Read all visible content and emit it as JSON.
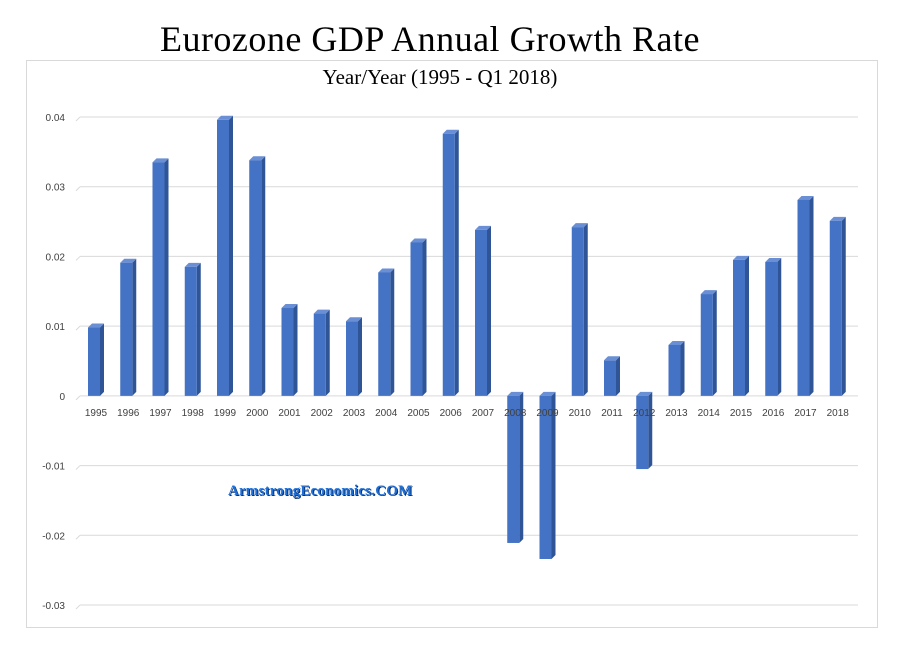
{
  "page": {
    "title": "Eurozone GDP Annual Growth Rate",
    "watermark": "ArmstrongEconomics.COM"
  },
  "colors": {
    "bar_front": "#4472c4",
    "bar_side": "#2f5597",
    "bar_top": "#6a8fd4",
    "gridline": "#d9d9d9",
    "axis_text": "#404040",
    "watermark": "#1f6fd6"
  },
  "chart_data": {
    "type": "bar",
    "title": "Year/Year (1995 - Q1 2018)",
    "xlabel": "",
    "ylabel": "",
    "categories": [
      "1995",
      "1996",
      "1997",
      "1998",
      "1999",
      "2000",
      "2001",
      "2002",
      "2003",
      "2004",
      "2005",
      "2006",
      "2007",
      "2008",
      "2009",
      "2010",
      "2011",
      "2012",
      "2013",
      "2014",
      "2015",
      "2016",
      "2017",
      "2018"
    ],
    "values": [
      0.0098,
      0.0191,
      0.0335,
      0.0185,
      0.0396,
      0.0338,
      0.0126,
      0.0118,
      0.0107,
      0.0177,
      0.022,
      0.0376,
      0.0238,
      -0.0211,
      -0.0234,
      0.0242,
      0.0051,
      -0.0105,
      0.0073,
      0.0146,
      0.0195,
      0.0192,
      0.0281,
      0.0251
    ],
    "ylim": [
      -0.03,
      0.04
    ],
    "yticks": [
      "0.04",
      "0.03",
      "0.02",
      "0.01",
      "0",
      "-0.01",
      "-0.02",
      "-0.03"
    ],
    "ytick_values": [
      0.04,
      0.03,
      0.02,
      0.01,
      0,
      -0.01,
      -0.02,
      -0.03
    ],
    "grid": true,
    "legend": "none",
    "style": "3d-column"
  }
}
